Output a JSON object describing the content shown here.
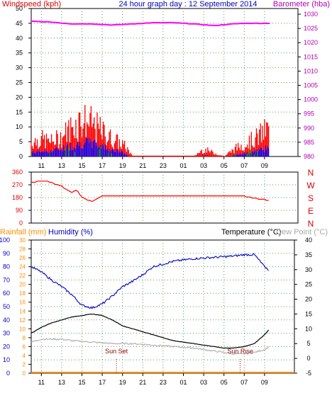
{
  "chart_data": [
    {
      "type": "bar",
      "panel": "wind-barometer",
      "title": "24 hour graph day : 12 September 2014",
      "left_axis_label": "Windspeed (kph)",
      "right_axis_label": "Barometer (hba)",
      "x_ticks": [
        "11",
        "13",
        "15",
        "17",
        "19",
        "21",
        "23",
        "01",
        "03",
        "05",
        "07",
        "09"
      ],
      "left_ticks": [
        0,
        5,
        10,
        15,
        20,
        25,
        30,
        35,
        40,
        45,
        50
      ],
      "right_ticks": [
        980,
        985,
        990,
        995,
        1000,
        1005,
        1010,
        1015,
        1020,
        1025,
        1030
      ],
      "ylim_left": [
        0,
        50
      ],
      "ylim_right": [
        980,
        1032
      ],
      "x_range_hours": [
        "10:00",
        "09:30 next day"
      ],
      "barometer": {
        "x": [
          10,
          12,
          14,
          16,
          18,
          20,
          22,
          24,
          26,
          28,
          30,
          31,
          33.5
        ],
        "y": [
          1027.5,
          1027.2,
          1026.6,
          1026.6,
          1026.2,
          1026.6,
          1027.0,
          1027.0,
          1026.6,
          1026.0,
          1026.6,
          1026.8,
          1026.8
        ]
      },
      "wind_gust_profile": {
        "x": [
          10,
          11,
          12,
          13,
          14,
          15,
          16,
          17,
          18,
          19,
          19.5,
          20,
          26,
          27,
          29,
          30,
          31,
          32,
          33,
          33.5
        ],
        "y": [
          6,
          7,
          6,
          8,
          12,
          15,
          13,
          10,
          7,
          5,
          3,
          0,
          0,
          3,
          0,
          3,
          5,
          7,
          10,
          12
        ]
      },
      "wind_avg_profile": {
        "x": [
          10,
          11,
          12,
          13,
          14,
          15,
          16,
          17,
          18,
          19,
          19.5,
          20,
          26,
          27,
          29,
          30,
          31,
          32,
          33,
          33.5
        ],
        "y": [
          1.5,
          2,
          2,
          3,
          4,
          5,
          5,
          4,
          2.5,
          1.5,
          0.5,
          0,
          0,
          0.5,
          0,
          0.5,
          1,
          2,
          3,
          4
        ]
      },
      "colors": {
        "barometer": "#ff00ff",
        "gust": "#ff0000",
        "average": "#0000ff",
        "calm": "#00a000"
      }
    },
    {
      "type": "line",
      "panel": "wind-direction",
      "left_ticks": [
        0,
        90,
        180,
        270,
        360
      ],
      "right_labels": [
        "N",
        "W",
        "S",
        "E",
        "N"
      ],
      "ylim": [
        0,
        360
      ],
      "direction": {
        "x": [
          10,
          11.5,
          12,
          13,
          14,
          14.5,
          15,
          16,
          17,
          26,
          30,
          31,
          32,
          33,
          33.5
        ],
        "y": [
          290,
          295,
          285,
          260,
          215,
          235,
          180,
          150,
          190,
          190,
          190,
          190,
          175,
          165,
          160
        ]
      },
      "color": "#ff0000"
    },
    {
      "type": "line",
      "panel": "temperature-humidity",
      "left_outer_axis_label": "Rainfall (mm)",
      "left_inner_axis_label": "Humidity (%)",
      "right_axis_label": "Temperature (°C)",
      "right_axis_label_2": "Dew Point (°C)",
      "humidity_ticks": [
        0,
        10,
        20,
        30,
        40,
        50,
        60,
        70,
        80,
        90,
        100
      ],
      "rain_ticks": [
        0,
        2,
        4,
        6,
        8,
        10,
        12,
        14,
        16,
        18,
        20,
        22,
        24,
        26,
        28,
        30
      ],
      "temp_ticks": [
        -5,
        0,
        5,
        10,
        15,
        20,
        25,
        30,
        35,
        40
      ],
      "ylim_humidity": [
        0,
        100
      ],
      "ylim_temp": [
        -5,
        40
      ],
      "humidity": {
        "x": [
          10,
          11,
          12,
          13,
          14,
          15,
          16,
          17,
          18,
          19,
          20,
          21,
          22,
          24,
          26,
          28,
          30,
          31,
          32,
          33,
          33.5
        ],
        "y": [
          80,
          76,
          70,
          65,
          59,
          51,
          49,
          52,
          58,
          65,
          69,
          74,
          80,
          84,
          86,
          87,
          88,
          89,
          89,
          80,
          77
        ]
      },
      "temperature": {
        "x": [
          10,
          11,
          12,
          13,
          14,
          15,
          16,
          17,
          18,
          19,
          20,
          22,
          24,
          26,
          28,
          29,
          30,
          31,
          32,
          33,
          33.5
        ],
        "y": [
          8.5,
          10.5,
          12,
          13,
          14,
          14.5,
          15,
          14.5,
          13,
          11,
          10,
          8,
          6,
          5,
          4,
          3.5,
          3.5,
          4,
          5,
          8,
          10
        ]
      },
      "dew_point": {
        "x": [
          10,
          11,
          12,
          13,
          14,
          16,
          18,
          20,
          22,
          24,
          26,
          28,
          29,
          30,
          31,
          32,
          33,
          33.5
        ],
        "y": [
          5.5,
          6.5,
          6.5,
          6.5,
          6,
          5.5,
          5,
          5,
          4.5,
          4,
          3.5,
          2.5,
          2,
          1.5,
          1.5,
          2,
          3,
          4
        ]
      },
      "rainfall": {
        "x": [
          10,
          33.5
        ],
        "y": [
          0,
          0
        ]
      },
      "annotations": [
        {
          "label": "Sun Set",
          "x": 18.4
        },
        {
          "label": "Sun Rise",
          "x": 30.6
        }
      ],
      "colors": {
        "humidity": "#0000c0",
        "temperature": "#000000",
        "dew_point": "#b0b0b0",
        "rainfall": "#ff8c00",
        "humidity_axis": "#0000c0",
        "rain_axis": "#ff8c00"
      }
    }
  ]
}
